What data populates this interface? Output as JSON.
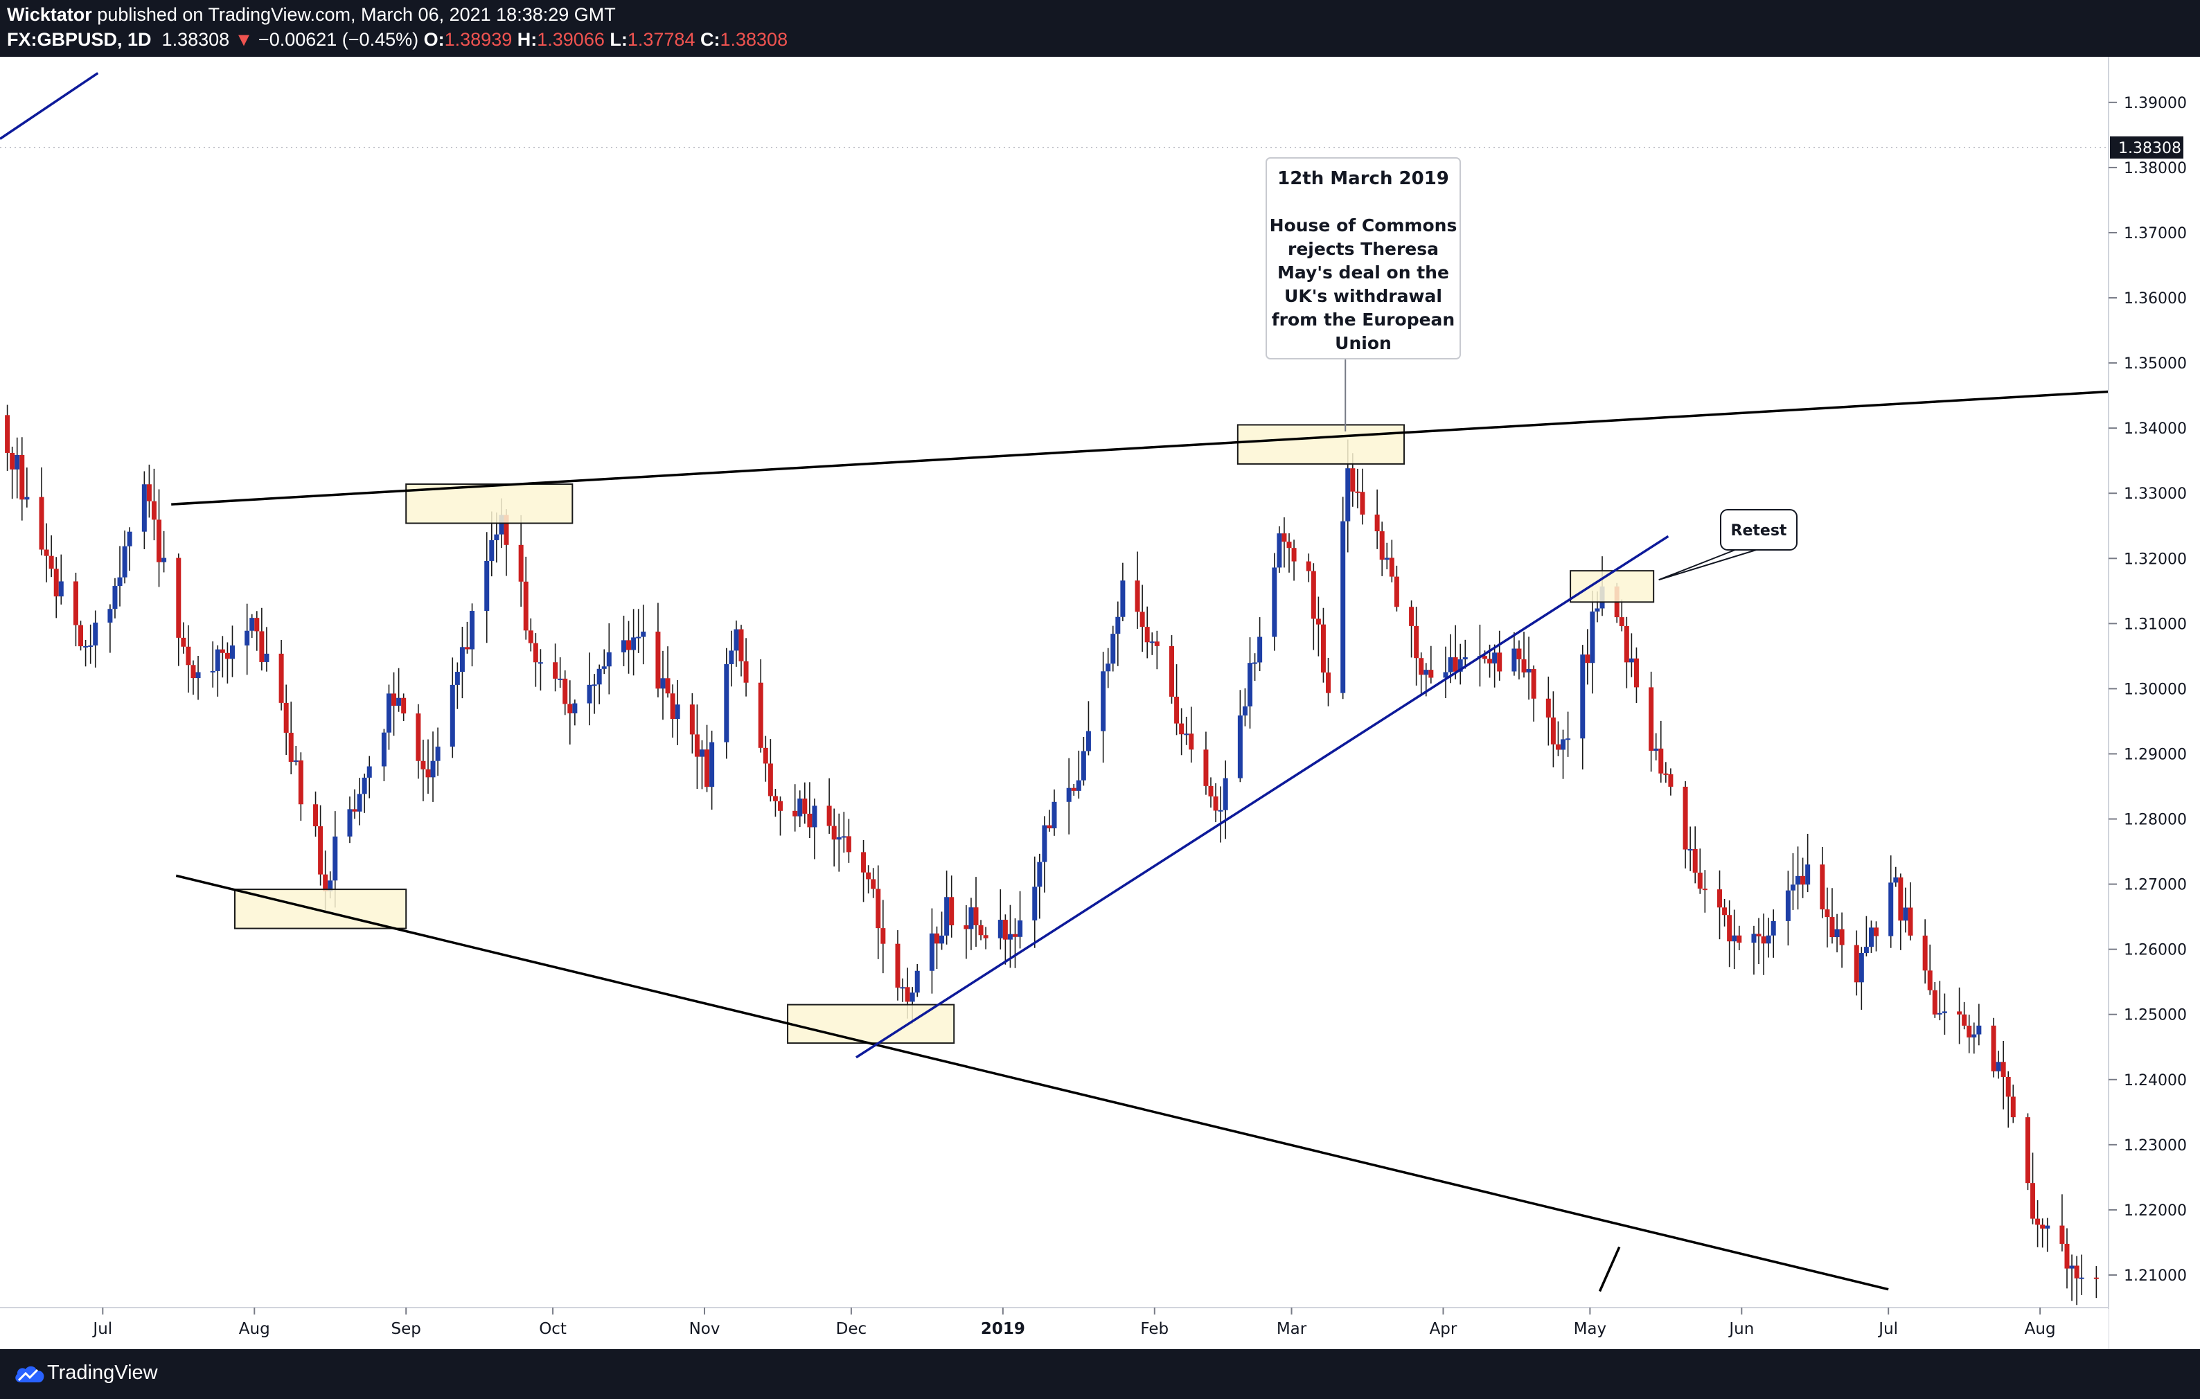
{
  "header": {
    "author": "Wicktator",
    "published": "published on TradingView.com, March 06, 2021 18:38:29 GMT",
    "symbol": "FX:GBPUSD, 1D",
    "last": "1.38308",
    "change_arrow": "▼",
    "change": "−0.00621 (−0.45%)",
    "o_label": "O:",
    "o_value": "1.38939",
    "h_label": "H:",
    "h_value": "1.39066",
    "l_label": "L:",
    "l_value": "1.37784",
    "c_label": "C:",
    "c_value": "1.38308"
  },
  "footer": {
    "brand": "TradingView"
  },
  "colors": {
    "up": "#1e3fa6",
    "down": "#cc1f1f",
    "zone_fill": "#fdf6d3",
    "trend_blue": "#0d1a9a",
    "trend_black": "#000000"
  },
  "chart_data": {
    "type": "candlestick",
    "instrument": "FX:GBPUSD",
    "interval": "1D",
    "x_range": [
      "2018-06-10",
      "2019-08-15"
    ],
    "ylim": [
      1.205,
      1.397
    ],
    "y_ticks": [
      "1.39000",
      "1.38000",
      "1.37000",
      "1.36000",
      "1.35000",
      "1.34000",
      "1.33000",
      "1.32000",
      "1.31000",
      "1.30000",
      "1.29000",
      "1.28000",
      "1.27000",
      "1.26000",
      "1.25000",
      "1.24000",
      "1.23000",
      "1.22000",
      "1.21000"
    ],
    "last_price": 1.38308,
    "last_price_label": "1.38308",
    "x_ticks": [
      {
        "label": "Jul",
        "date": "2018-07-01",
        "bold": false
      },
      {
        "label": "Aug",
        "date": "2018-08-01",
        "bold": false
      },
      {
        "label": "Sep",
        "date": "2018-09-01",
        "bold": false
      },
      {
        "label": "Oct",
        "date": "2018-10-01",
        "bold": false
      },
      {
        "label": "Nov",
        "date": "2018-11-01",
        "bold": false
      },
      {
        "label": "Dec",
        "date": "2018-12-01",
        "bold": false
      },
      {
        "label": "2019",
        "date": "2019-01-01",
        "bold": true
      },
      {
        "label": "Feb",
        "date": "2019-02-01",
        "bold": false
      },
      {
        "label": "Mar",
        "date": "2019-03-01",
        "bold": false
      },
      {
        "label": "Apr",
        "date": "2019-04-01",
        "bold": false
      },
      {
        "label": "May",
        "date": "2019-05-01",
        "bold": false
      },
      {
        "label": "Jun",
        "date": "2019-06-01",
        "bold": false
      },
      {
        "label": "Jul",
        "date": "2019-07-01",
        "bold": false
      },
      {
        "label": "Aug",
        "date": "2019-08-01",
        "bold": false
      }
    ],
    "close_path": [
      [
        "2018-06-11",
        1.338
      ],
      [
        "2018-06-20",
        1.318
      ],
      [
        "2018-06-28",
        1.306
      ],
      [
        "2018-07-09",
        1.33
      ],
      [
        "2018-07-19",
        1.3
      ],
      [
        "2018-07-31",
        1.312
      ],
      [
        "2018-08-15",
        1.271
      ],
      [
        "2018-08-30",
        1.301
      ],
      [
        "2018-09-05",
        1.286
      ],
      [
        "2018-09-20",
        1.326
      ],
      [
        "2018-09-28",
        1.302
      ],
      [
        "2018-10-05",
        1.298
      ],
      [
        "2018-10-18",
        1.308
      ],
      [
        "2018-11-01",
        1.287
      ],
      [
        "2018-11-07",
        1.31
      ],
      [
        "2018-11-14",
        1.283
      ],
      [
        "2018-11-27",
        1.278
      ],
      [
        "2018-12-04",
        1.27
      ],
      [
        "2018-12-11",
        1.252
      ],
      [
        "2018-12-20",
        1.266
      ],
      [
        "2019-01-03",
        1.262
      ],
      [
        "2019-01-10",
        1.279
      ],
      [
        "2019-01-17",
        1.289
      ],
      [
        "2019-01-25",
        1.316
      ],
      [
        "2019-02-01",
        1.305
      ],
      [
        "2019-02-07",
        1.293
      ],
      [
        "2019-02-14",
        1.281
      ],
      [
        "2019-02-26",
        1.322
      ],
      [
        "2019-03-04",
        1.316
      ],
      [
        "2019-03-08",
        1.301
      ],
      [
        "2019-03-12",
        1.333
      ],
      [
        "2019-03-21",
        1.317
      ],
      [
        "2019-03-28",
        1.302
      ],
      [
        "2019-04-05",
        1.305
      ],
      [
        "2019-04-16",
        1.305
      ],
      [
        "2019-04-25",
        1.29
      ],
      [
        "2019-05-03",
        1.316
      ],
      [
        "2019-05-06",
        1.31
      ],
      [
        "2019-05-14",
        1.29
      ],
      [
        "2019-05-24",
        1.267
      ],
      [
        "2019-06-03",
        1.26
      ],
      [
        "2019-06-14",
        1.272
      ],
      [
        "2019-06-24",
        1.255
      ],
      [
        "2019-07-01",
        1.271
      ],
      [
        "2019-07-10",
        1.25
      ],
      [
        "2019-07-19",
        1.247
      ],
      [
        "2019-07-26",
        1.236
      ],
      [
        "2019-07-31",
        1.217
      ],
      [
        "2019-08-12",
        1.208
      ]
    ],
    "annotations": [
      {
        "kind": "callout",
        "anchor_date": "2019-03-12",
        "anchor_price": 1.3395,
        "title": "12th March 2019",
        "lines": [
          "House of Commons",
          "rejects Theresa",
          "May's deal on the",
          "UK's withdrawal",
          "from the European",
          "Union"
        ]
      },
      {
        "kind": "callout",
        "anchor_date": "2019-05-06",
        "anchor_price": 1.3165,
        "title": "Retest",
        "lines": []
      }
    ],
    "zones": [
      {
        "date_from": "2018-09-01",
        "date_to": "2018-10-05",
        "price_from": 1.3254,
        "price_to": 1.3314
      },
      {
        "date_from": "2018-07-28",
        "date_to": "2018-09-01",
        "price_from": 1.2632,
        "price_to": 1.2692
      },
      {
        "date_from": "2018-11-18",
        "date_to": "2018-12-22",
        "price_from": 1.2456,
        "price_to": 1.2515
      },
      {
        "date_from": "2019-02-18",
        "date_to": "2019-03-24",
        "price_from": 1.3345,
        "price_to": 1.3405
      },
      {
        "date_from": "2019-04-27",
        "date_to": "2019-05-14",
        "price_from": 1.3133,
        "price_to": 1.3181
      }
    ],
    "trendlines": [
      {
        "color": "black",
        "from": [
          "2018-07-15",
          1.3283
        ],
        "to": [
          "2019-08-15",
          1.3456
        ]
      },
      {
        "color": "black",
        "from": [
          "2018-07-16",
          1.2713
        ],
        "to": [
          "2019-07-01",
          1.2078
        ]
      },
      {
        "color": "blue",
        "from": [
          "2018-12-02",
          1.2434
        ],
        "to": [
          "2019-05-17",
          1.3234
        ]
      },
      {
        "color": "blue",
        "from": [
          "2018-06-10",
          1.3844
        ],
        "to": [
          "2018-06-30",
          1.3945
        ]
      },
      {
        "color": "black",
        "from": [
          "2019-05-03",
          1.2075
        ],
        "to": [
          "2019-05-07",
          1.2143
        ]
      }
    ]
  }
}
